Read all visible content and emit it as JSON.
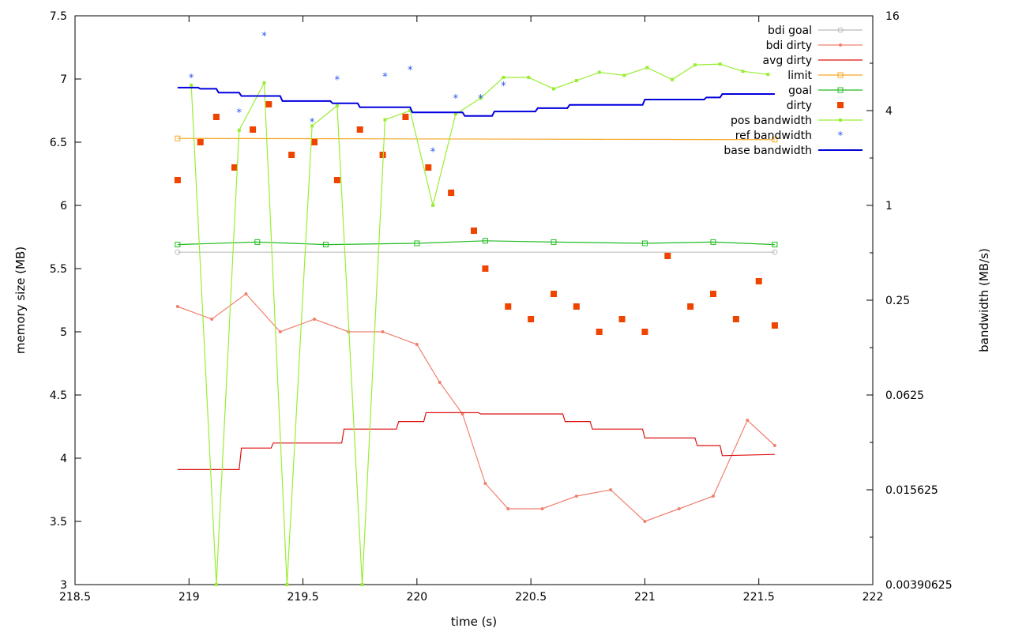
{
  "chart_data": {
    "type": "line",
    "xlabel": "time (s)",
    "ylabel": "memory size (MB)",
    "y2label": "bandwidth (MB/s)",
    "xlim": [
      218.5,
      222
    ],
    "ylim": [
      3,
      7.5
    ],
    "y2lim": [
      0.00390625,
      16
    ],
    "y2scale": "log2",
    "xticks": [
      "218.5",
      "219",
      "219.5",
      "220",
      "220.5",
      "221",
      "221.5",
      "222"
    ],
    "xtick_values": [
      218.5,
      219,
      219.5,
      220,
      220.5,
      221,
      221.5,
      222
    ],
    "yticks": [
      "3",
      "3.5",
      "4",
      "4.5",
      "5",
      "5.5",
      "6",
      "6.5",
      "7",
      "7.5"
    ],
    "ytick_values": [
      3,
      3.5,
      4,
      4.5,
      5,
      5.5,
      6,
      6.5,
      7,
      7.5
    ],
    "y2ticks": [
      "0.00390625",
      "0.015625",
      "0.0625",
      "0.25",
      "1",
      "4",
      "16"
    ],
    "y2tick_values": [
      0.00390625,
      0.015625,
      0.0625,
      0.25,
      1,
      4,
      16
    ],
    "grid": false,
    "legend_position": "top-right",
    "colors": {
      "bdi_goal": "#bbbbbb",
      "bdi_dirty": "#f08070",
      "avg_dirty": "#dd1111",
      "limit": "#f5a623",
      "goal": "#22bb22",
      "dirty": "#ee4400",
      "pos_bandwidth": "#99ee33",
      "ref_bandwidth": "#2255ee",
      "base_bandwidth": "#0000dd"
    },
    "series": [
      {
        "name": "bdi goal",
        "axis": "y",
        "style": "line-points",
        "x": [
          218.95,
          221.57
        ],
        "y": [
          5.63,
          5.63
        ]
      },
      {
        "name": "bdi dirty",
        "axis": "y",
        "style": "line-points",
        "x": [
          218.95,
          219.1,
          219.25,
          219.4,
          219.55,
          219.7,
          219.85,
          220.0,
          220.1,
          220.2,
          220.3,
          220.4,
          220.55,
          220.7,
          220.85,
          221.0,
          221.15,
          221.3,
          221.45,
          221.57
        ],
        "y": [
          5.2,
          5.1,
          5.3,
          5.0,
          5.1,
          5.0,
          5.0,
          4.9,
          4.6,
          4.35,
          3.8,
          3.6,
          3.6,
          3.7,
          3.75,
          3.5,
          3.6,
          3.7,
          4.3,
          4.1
        ]
      },
      {
        "name": "avg dirty",
        "axis": "y",
        "style": "step",
        "x": [
          218.95,
          219.22,
          219.23,
          219.36,
          219.37,
          219.67,
          219.68,
          219.91,
          219.92,
          220.03,
          220.04,
          220.27,
          220.28,
          220.64,
          220.65,
          220.76,
          220.77,
          220.99,
          221.0,
          221.22,
          221.23,
          221.33,
          221.34,
          221.57
        ],
        "y": [
          3.91,
          3.91,
          4.08,
          4.08,
          4.12,
          4.12,
          4.23,
          4.23,
          4.29,
          4.29,
          4.36,
          4.36,
          4.35,
          4.35,
          4.29,
          4.29,
          4.23,
          4.23,
          4.16,
          4.16,
          4.1,
          4.1,
          4.02,
          4.03
        ]
      },
      {
        "name": "limit",
        "axis": "y",
        "style": "line-points",
        "x": [
          218.95,
          221.57
        ],
        "y": [
          6.53,
          6.52
        ]
      },
      {
        "name": "goal",
        "axis": "y",
        "style": "line-points",
        "x": [
          218.95,
          219.3,
          219.6,
          220.0,
          220.3,
          220.6,
          221.0,
          221.3,
          221.57
        ],
        "y": [
          5.69,
          5.71,
          5.69,
          5.7,
          5.72,
          5.71,
          5.7,
          5.71,
          5.69
        ]
      },
      {
        "name": "dirty",
        "axis": "y",
        "style": "points",
        "x": [
          218.95,
          219.05,
          219.12,
          219.2,
          219.28,
          219.35,
          219.45,
          219.55,
          219.65,
          219.75,
          219.85,
          219.95,
          220.05,
          220.15,
          220.25,
          220.3,
          220.4,
          220.5,
          220.6,
          220.7,
          220.8,
          220.9,
          221.0,
          221.1,
          221.2,
          221.3,
          221.4,
          221.5,
          221.57
        ],
        "y": [
          6.2,
          6.5,
          6.7,
          6.3,
          6.6,
          6.8,
          6.4,
          6.5,
          6.2,
          6.6,
          6.4,
          6.7,
          6.3,
          6.1,
          5.8,
          5.5,
          5.2,
          5.1,
          5.3,
          5.2,
          5.0,
          5.1,
          5.0,
          5.6,
          5.2,
          5.3,
          5.1,
          5.4,
          5.05
        ]
      },
      {
        "name": "pos bandwidth",
        "axis": "y2",
        "style": "line-points",
        "x": [
          219.01,
          219.12,
          219.22,
          219.33,
          219.43,
          219.54,
          219.65,
          219.76,
          219.86,
          219.97,
          220.07,
          220.17,
          220.28,
          220.38,
          220.49,
          220.6,
          220.7,
          220.8,
          220.91,
          221.01,
          221.12,
          221.22,
          221.33,
          221.43,
          221.54
        ],
        "y": [
          5.8,
          0.0039,
          3.0,
          6.0,
          0.0039,
          3.2,
          4.3,
          0.0039,
          3.5,
          4.0,
          1.0,
          3.8,
          4.8,
          6.5,
          6.5,
          5.5,
          6.2,
          7.0,
          6.7,
          7.5,
          6.3,
          7.8,
          7.9,
          7.1,
          6.8
        ]
      },
      {
        "name": "ref bandwidth",
        "axis": "y2",
        "style": "points",
        "x": [
          219.01,
          219.22,
          219.33,
          219.54,
          219.65,
          219.86,
          219.97,
          220.07,
          220.17,
          220.28,
          220.38
        ],
        "y": [
          6.5,
          3.9,
          12.0,
          3.4,
          6.3,
          6.6,
          7.3,
          2.2,
          4.8,
          4.8,
          5.8
        ]
      },
      {
        "name": "base bandwidth",
        "axis": "y2",
        "style": "step",
        "x": [
          218.95,
          219.04,
          219.05,
          219.12,
          219.13,
          219.22,
          219.23,
          219.4,
          219.41,
          219.62,
          219.63,
          219.74,
          219.75,
          219.97,
          219.98,
          220.2,
          220.21,
          220.33,
          220.34,
          220.52,
          220.53,
          220.66,
          220.67,
          220.99,
          221.0,
          221.26,
          221.27,
          221.33,
          221.34,
          221.57
        ],
        "y": [
          5.6,
          5.6,
          5.5,
          5.5,
          5.2,
          5.2,
          4.95,
          4.95,
          4.6,
          4.6,
          4.45,
          4.45,
          4.2,
          4.2,
          3.9,
          3.9,
          3.7,
          3.7,
          3.95,
          3.95,
          4.15,
          4.15,
          4.35,
          4.35,
          4.7,
          4.7,
          4.85,
          4.85,
          5.1,
          5.1
        ]
      }
    ]
  }
}
